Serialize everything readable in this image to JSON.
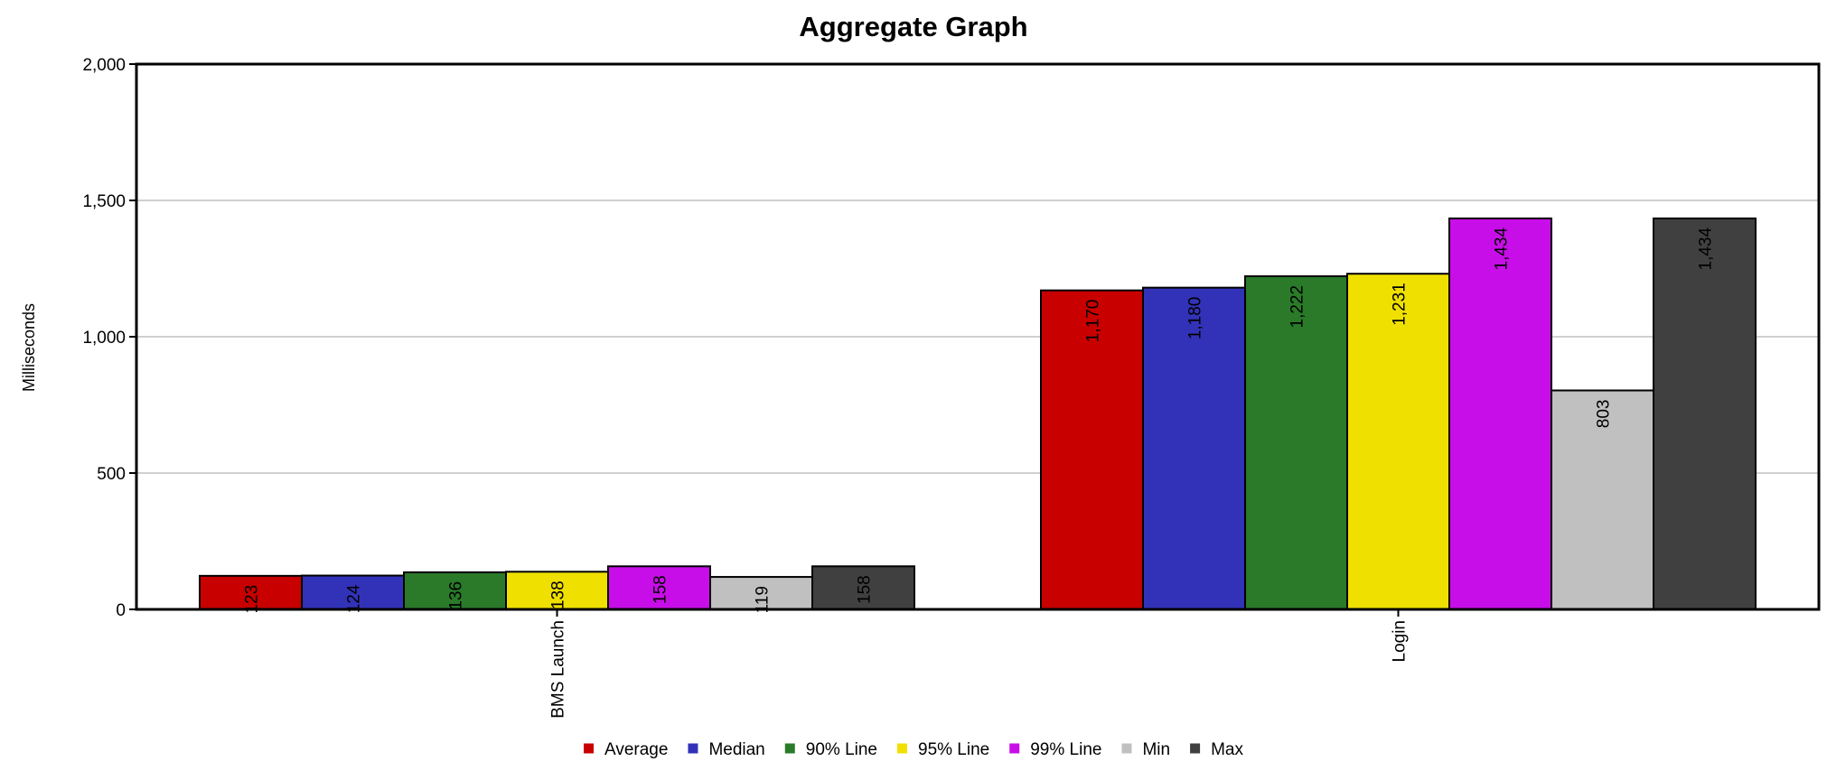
{
  "chart_data": {
    "type": "bar",
    "title": "Aggregate Graph",
    "ylabel": "Milliseconds",
    "xlabel": "",
    "ylim": [
      0,
      2000
    ],
    "yticks": [
      0,
      500,
      1000,
      1500,
      2000
    ],
    "ytick_labels": [
      "0",
      "500",
      "1,000",
      "1,500",
      "2,000"
    ],
    "categories": [
      "BMS Launch",
      "Login"
    ],
    "grid": true,
    "legend_position": "bottom",
    "series": [
      {
        "name": "Average",
        "color": "#c80000",
        "values": [
          123,
          1170
        ],
        "labels": [
          "123",
          "1,170"
        ]
      },
      {
        "name": "Median",
        "color": "#3232b8",
        "values": [
          124,
          1180
        ],
        "labels": [
          "124",
          "1,180"
        ]
      },
      {
        "name": "90% Line",
        "color": "#2a7a2a",
        "values": [
          136,
          1222
        ],
        "labels": [
          "136",
          "1,222"
        ]
      },
      {
        "name": "95% Line",
        "color": "#f0e000",
        "values": [
          138,
          1231
        ],
        "labels": [
          "138",
          "1,231"
        ]
      },
      {
        "name": "99% Line",
        "color": "#c80ee8",
        "values": [
          158,
          1434
        ],
        "labels": [
          "158",
          "1,434"
        ]
      },
      {
        "name": "Min",
        "color": "#c0c0c0",
        "values": [
          119,
          803
        ],
        "labels": [
          "119",
          "803"
        ]
      },
      {
        "name": "Max",
        "color": "#404040",
        "values": [
          158,
          1434
        ],
        "labels": [
          "158",
          "1,434"
        ]
      }
    ]
  }
}
